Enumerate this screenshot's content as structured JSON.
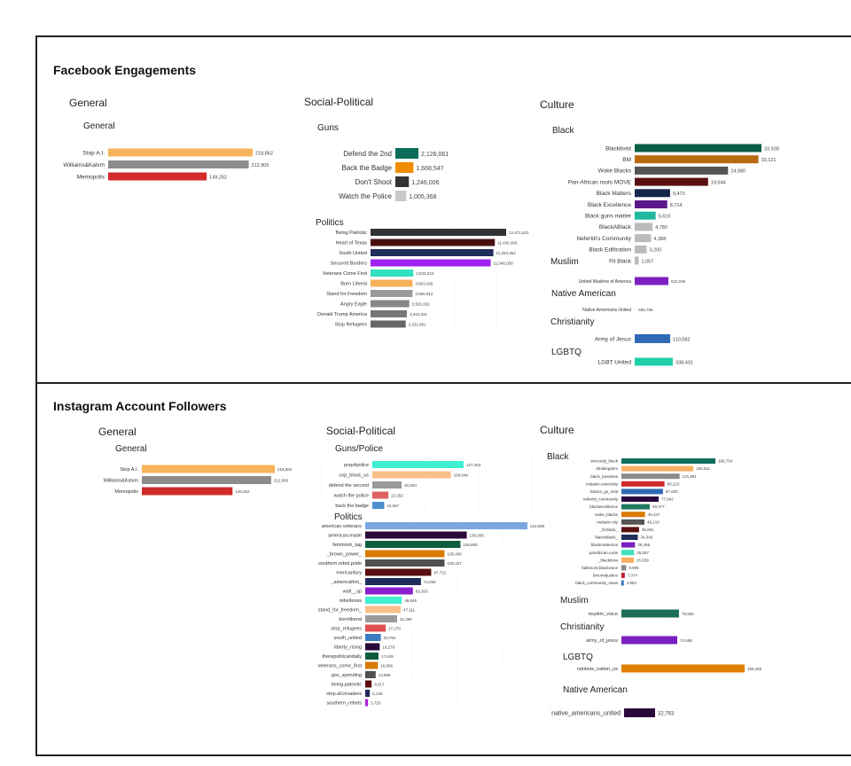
{
  "facebook": {
    "title": "Facebook Engagements",
    "general_header": "General",
    "social_header": "Social-Political",
    "culture_header": "Culture"
  },
  "instagram": {
    "title": "Instagram Account Followers",
    "general_header": "General",
    "social_header": "Social-Political",
    "culture_header": "Culture"
  },
  "chart_data": [
    {
      "id": "fb_general",
      "type": "bar",
      "orientation": "horizontal",
      "title": "General",
      "categories": [
        "Stop A.I.",
        "Williams&Kalvm",
        "Memopolis"
      ],
      "values": [
        218862,
        212900,
        149252
      ],
      "value_labels": [
        "218,862",
        "212,900",
        "149,252"
      ],
      "colors": [
        "#f7b35a",
        "#8c8c8c",
        "#d12b2b"
      ]
    },
    {
      "id": "fb_guns",
      "type": "bar",
      "orientation": "horizontal",
      "title": "Guns",
      "categories": [
        "Defend the 2nd",
        "Back the Badge",
        "Don't Shoot",
        "Watch the Police"
      ],
      "values": [
        2126061,
        1668547,
        1246006,
        1005368
      ],
      "value_labels": [
        "2,126,061",
        "1,668,547",
        "1,246,006",
        "1,005,368"
      ],
      "colors": [
        "#0b6e5a",
        "#f08c00",
        "#333333",
        "#c9c9c9"
      ]
    },
    {
      "id": "fb_politics",
      "type": "bar",
      "orientation": "horizontal",
      "title": "Politics",
      "categories": [
        "Being Patriotic",
        "Heart of Texas",
        "South United",
        "Secured Borders",
        "Veterans Come First",
        "Born Liberal",
        "Stand for Freedom",
        "Angry Eagle",
        "Donald Trump America",
        "Stop Refugees"
      ],
      "values": [
        12471531,
        11430366,
        11294352,
        11046039,
        3933223,
        3863028,
        3856912,
        3561661,
        3344331,
        3232861
      ],
      "value_labels": [
        "12,471,531",
        "11,430,366",
        "11,294,352",
        "11,046,039",
        "3,933,223",
        "3,863,028",
        "3,856,912",
        "3,561,661",
        "3,344,331",
        "3,232,861"
      ],
      "colors": [
        "#333333",
        "#4a1010",
        "#1f2d5a",
        "#a020f0",
        "#33e0c0",
        "#f7b35a",
        "#999999",
        "#888888",
        "#777777",
        "#666666"
      ]
    },
    {
      "id": "fb_black",
      "type": "bar",
      "orientation": "horizontal",
      "title": "Black",
      "categories": [
        "Blacktivist",
        "BM",
        "Woke Blacks",
        "Pan-African roots MOVE",
        "Black Matters",
        "Black Excellence",
        "Black guns matter",
        "BlackABlack",
        "Nefertiti's Community",
        "Black Edification",
        "Fit Black"
      ],
      "values": [
        33928,
        33121,
        24980,
        19644,
        9473,
        8714,
        5616,
        4780,
        4388,
        3200,
        1057
      ],
      "value_labels": [
        "33,928",
        "33,121",
        "24,980",
        "19,644",
        "9,473",
        "8,714",
        "5,616",
        "4,780",
        "4,388",
        "3,200",
        "1,057"
      ],
      "colors": [
        "#0b5e46",
        "#b86a12",
        "#555555",
        "#5a1010",
        "#14284d",
        "#5b1a8a",
        "#20b8a0",
        "#bbbbbb",
        "#bbbbbb",
        "#bbbbbb",
        "#bbbbbb"
      ]
    },
    {
      "id": "fb_muslim",
      "type": "bar",
      "orientation": "horizontal",
      "title": "Muslim",
      "categories": [
        "United Muslims of America"
      ],
      "values": [
        622036
      ],
      "value_labels": [
        "622,036"
      ],
      "colors": [
        "#7a1fc0"
      ]
    },
    {
      "id": "fb_native",
      "type": "bar",
      "orientation": "horizontal",
      "title": "Native American",
      "categories": [
        "Native Americans United"
      ],
      "values": [
        656756
      ],
      "value_labels": [
        "656,756"
      ],
      "colors": [
        "#cccccc"
      ]
    },
    {
      "id": "fb_christianity",
      "type": "bar",
      "orientation": "horizontal",
      "title": "Christianity",
      "categories": [
        "Army of Jesus"
      ],
      "values": [
        110582
      ],
      "value_labels": [
        "110,582"
      ],
      "colors": [
        "#2f6bb5"
      ]
    },
    {
      "id": "fb_lgbtq",
      "type": "bar",
      "orientation": "horizontal",
      "title": "LGBTQ",
      "categories": [
        "LGBT United"
      ],
      "values": [
        338431
      ],
      "value_labels": [
        "338,431"
      ],
      "colors": [
        "#1fd1a8"
      ]
    },
    {
      "id": "ig_general",
      "type": "bar",
      "orientation": "horizontal",
      "title": "General",
      "categories": [
        "Stop A.I.",
        "Williams&Kalvm",
        "Memopolis"
      ],
      "values": [
        218862,
        212900,
        149252
      ],
      "value_labels": [
        "218,862",
        "212,900",
        "149,252"
      ],
      "colors": [
        "#f7b35a",
        "#8c8c8c",
        "#d12b2b"
      ]
    },
    {
      "id": "ig_guns",
      "type": "bar",
      "orientation": "horizontal",
      "title": "Guns/Police",
      "categories": [
        "pray4police",
        "cop_block_us",
        "defend the second",
        "watch the police",
        "back the badge"
      ],
      "values": [
        127353,
        109648,
        40920,
        22392,
        16597
      ],
      "value_labels": [
        "127,353",
        "109,648",
        "40,920",
        "22,392",
        "16,597"
      ],
      "colors": [
        "#3ef0d0",
        "#f9c08a",
        "#9a9a9a",
        "#e06060",
        "#4a90d0"
      ]
    },
    {
      "id": "ig_politics",
      "type": "bar",
      "orientation": "horizontal",
      "title": "Politics",
      "categories": [
        "american.veterans",
        "american.made",
        "feminism_tag",
        "_brown_power_",
        "southern.rebel.pride",
        "mericanfury",
        "_americafirst_",
        "wall__sp",
        "rebeltexas",
        "stand_for_freedom_",
        "bornliberal",
        "stop_refugees",
        "south_united",
        "liberty_rising",
        "therepublicandaily",
        "veterans_come_first",
        "gov_spending",
        "being.patriotic",
        "stop.all.invaders",
        "southern_rebels"
      ],
      "values": [
        215680,
        135008,
        126605,
        105438,
        105427,
        87731,
        74094,
        63363,
        48645,
        47111,
        42390,
        27270,
        20784,
        19279,
        17649,
        16806,
        13898,
        8517,
        6128,
        3725
      ],
      "value_labels": [
        "215,680",
        "135,008",
        "126,605",
        "105,438",
        "105,427",
        "87,731",
        "74,094",
        "63,363",
        "48,645",
        "47,111",
        "42,390",
        "27,270",
        "20,784",
        "19,279",
        "17,649",
        "16,806",
        "13,898",
        "8,517",
        "6,128",
        "3,725"
      ],
      "colors": [
        "#7aa6e0",
        "#2a0a3a",
        "#0e5e3e",
        "#d97a00",
        "#505050",
        "#5a1010",
        "#1f2d5a",
        "#8a1fd0",
        "#40f0d0",
        "#f9c08a",
        "#9a9a9a",
        "#e05050",
        "#3a7ac0",
        "#2a0a3a",
        "#0e5e3e",
        "#d97a00",
        "#505050",
        "#5a1010",
        "#1f2d5a",
        "#b020e0"
      ]
    },
    {
      "id": "ig_black",
      "type": "bar",
      "orientation": "horizontal",
      "title": "Black",
      "categories": [
        "sincerely_black",
        "afrokingdom",
        "black_business",
        "melanin.university",
        "blacks_go_viral",
        "nefertiti_community",
        "blackexcellence",
        "woke_blacks",
        "melanin city",
        "_fit.black_",
        "blackxblack_",
        "blackmattersus",
        "panafrican.roots",
        "_blacktivist",
        "baltimore.blackvoice",
        "bmore4justice",
        "black_community_news"
      ],
      "values": [
        196754,
        150511,
        121881,
        90210,
        87000,
        77942,
        59377,
        49427,
        48210,
        36881,
        34349,
        28466,
        26557,
        25939,
        9905,
        7074,
        4963
      ],
      "value_labels": [
        "196,754",
        "150,511",
        "121,881",
        "90,210",
        "87,000",
        "77,942",
        "59,377",
        "49,427",
        "48,210",
        "36,881",
        "34,349",
        "28,466",
        "26,557",
        "25,939",
        "9,905",
        "7,074",
        "4,963"
      ],
      "colors": [
        "#0b6e5a",
        "#f9b060",
        "#8c8c8c",
        "#d12b2b",
        "#2f6bb5",
        "#2a0a3a",
        "#1f7a5e",
        "#d97a00",
        "#555555",
        "#5a1010",
        "#1f2d5a",
        "#7a1fc0",
        "#40e0c0",
        "#f9b060",
        "#888888",
        "#c02030",
        "#2f6bb5"
      ]
    },
    {
      "id": "ig_muslim",
      "type": "bar",
      "orientation": "horizontal",
      "title": "Muslim",
      "categories": [
        "muslim_voice"
      ],
      "values": [
        76560
      ],
      "value_labels": [
        "76,560"
      ],
      "colors": [
        "#1b6e55"
      ]
    },
    {
      "id": "ig_christianity",
      "type": "bar",
      "orientation": "horizontal",
      "title": "Christianity",
      "categories": [
        "army_of_jesus"
      ],
      "values": [
        74556
      ],
      "value_labels": [
        "74,556"
      ],
      "colors": [
        "#7a1fc0"
      ]
    },
    {
      "id": "ig_lgbtq",
      "type": "bar",
      "orientation": "horizontal",
      "title": "LGBTQ",
      "categories": [
        "rainbow_nation_us"
      ],
      "values": [
        156465
      ],
      "value_labels": [
        "156,465"
      ],
      "colors": [
        "#e08000"
      ]
    },
    {
      "id": "ig_native",
      "type": "bar",
      "orientation": "horizontal",
      "title": "Native American",
      "categories": [
        "native_americans_united"
      ],
      "values": [
        32763
      ],
      "value_labels": [
        "32,763"
      ],
      "colors": [
        "#2a0a3a"
      ]
    }
  ]
}
